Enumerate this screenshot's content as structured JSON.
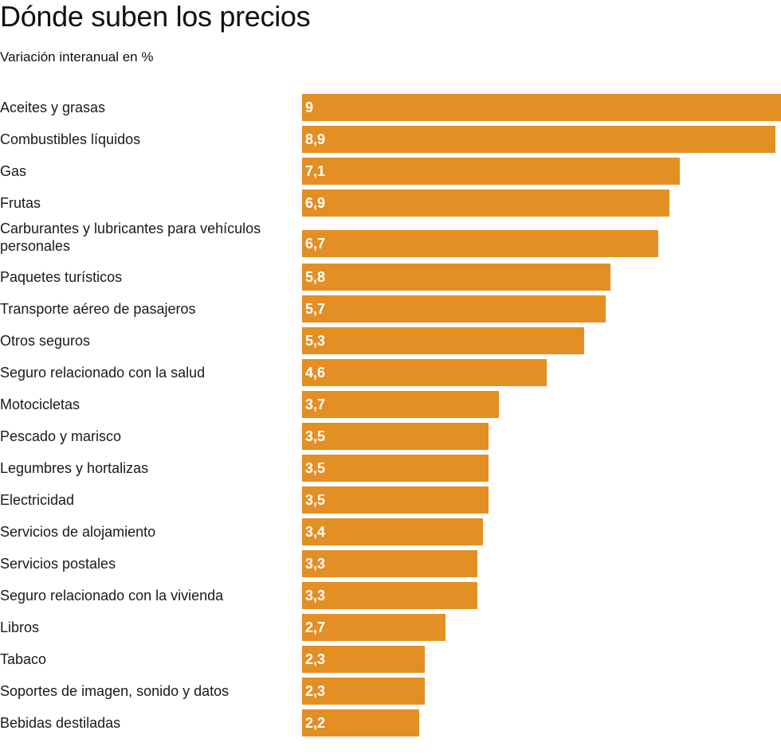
{
  "header": {
    "title": "Dónde suben los precios",
    "subtitle": "Variación interanual en %"
  },
  "colors": {
    "bar": "#e38f24",
    "value_text": "#ffffff"
  },
  "chart_data": {
    "type": "bar",
    "orientation": "horizontal",
    "title": "Dónde suben los precios",
    "subtitle": "Variación interanual en %",
    "xlabel": "",
    "ylabel": "",
    "xlim": [
      0,
      9
    ],
    "grid": false,
    "legend": "none",
    "categories": [
      "Aceites y grasas",
      "Combustibles líquidos",
      "Gas",
      "Frutas",
      "Carburantes y lubricantes para vehículos personales",
      "Paquetes turísticos",
      "Transporte aéreo de pasajeros",
      "Otros seguros",
      "Seguro relacionado con la salud",
      "Motocicletas",
      "Pescado y marisco",
      "Legumbres y hortalizas",
      "Electricidad",
      "Servicios de alojamiento",
      "Servicios postales",
      "Seguro relacionado con la vivienda",
      "Libros",
      "Tabaco",
      "Soportes de imagen, sonido y datos",
      "Bebidas destiladas"
    ],
    "values": [
      9,
      8.9,
      7.1,
      6.9,
      6.7,
      5.8,
      5.7,
      5.3,
      4.6,
      3.7,
      3.5,
      3.5,
      3.5,
      3.4,
      3.3,
      3.3,
      2.7,
      2.3,
      2.3,
      2.2
    ],
    "value_labels": [
      "9",
      "8,9",
      "7,1",
      "6,9",
      "6,7",
      "5,8",
      "5,7",
      "5,3",
      "4,6",
      "3,7",
      "3,5",
      "3,5",
      "3,5",
      "3,4",
      "3,3",
      "3,3",
      "2,7",
      "2,3",
      "2,3",
      "2,2"
    ]
  }
}
